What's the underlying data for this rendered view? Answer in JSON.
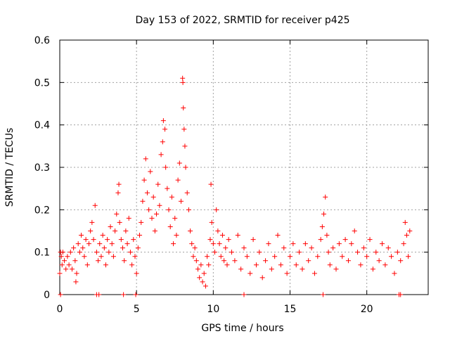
{
  "chart_data": {
    "type": "scatter",
    "title": "Day 153 of 2022, SRMTID for receiver p425",
    "xlabel": "GPS time / hours",
    "ylabel": "SRMTID / TECUs",
    "xlim": [
      0,
      24
    ],
    "ylim": [
      0,
      0.6
    ],
    "x_ticks": [
      0,
      5,
      10,
      15,
      20
    ],
    "x_tick_labels": [
      "0",
      "5",
      "10",
      "15",
      "20"
    ],
    "y_ticks": [
      0,
      0.1,
      0.2,
      0.3,
      0.4,
      0.5,
      0.6
    ],
    "y_tick_labels": [
      "0",
      "0.1",
      "0.2",
      "0.3",
      "0.4",
      "0.5",
      "0.6"
    ],
    "grid": true,
    "marker": "+",
    "marker_color": "#ff0000",
    "series": [
      {
        "name": "SRMTID",
        "points": [
          [
            0.0,
            0.05
          ],
          [
            0.05,
            0.1
          ],
          [
            0.1,
            0.09
          ],
          [
            0.15,
            0.07
          ],
          [
            0.2,
            0.1
          ],
          [
            0.3,
            0.08
          ],
          [
            0.4,
            0.06
          ],
          [
            0.5,
            0.09
          ],
          [
            0.6,
            0.07
          ],
          [
            0.7,
            0.1
          ],
          [
            0.8,
            0.06
          ],
          [
            0.9,
            0.11
          ],
          [
            1.0,
            0.08
          ],
          [
            1.05,
            0.03
          ],
          [
            1.1,
            0.05
          ],
          [
            1.2,
            0.12
          ],
          [
            1.3,
            0.1
          ],
          [
            1.4,
            0.14
          ],
          [
            1.5,
            0.11
          ],
          [
            1.6,
            0.09
          ],
          [
            1.7,
            0.13
          ],
          [
            1.8,
            0.07
          ],
          [
            1.9,
            0.12
          ],
          [
            2.0,
            0.15
          ],
          [
            2.1,
            0.17
          ],
          [
            2.2,
            0.13
          ],
          [
            2.3,
            0.21
          ],
          [
            2.4,
            0.1
          ],
          [
            2.5,
            0.08
          ],
          [
            2.6,
            0.12
          ],
          [
            2.7,
            0.09
          ],
          [
            2.8,
            0.14
          ],
          [
            2.9,
            0.11
          ],
          [
            3.0,
            0.07
          ],
          [
            3.1,
            0.13
          ],
          [
            3.2,
            0.1
          ],
          [
            3.3,
            0.16
          ],
          [
            3.4,
            0.12
          ],
          [
            3.5,
            0.09
          ],
          [
            3.6,
            0.15
          ],
          [
            3.7,
            0.19
          ],
          [
            3.8,
            0.24
          ],
          [
            3.85,
            0.26
          ],
          [
            3.9,
            0.17
          ],
          [
            4.0,
            0.13
          ],
          [
            4.1,
            0.11
          ],
          [
            4.2,
            0.08
          ],
          [
            4.3,
            0.15
          ],
          [
            4.4,
            0.12
          ],
          [
            4.5,
            0.18
          ],
          [
            4.6,
            0.1
          ],
          [
            4.7,
            0.07
          ],
          [
            4.8,
            0.13
          ],
          [
            4.9,
            0.09
          ],
          [
            5.0,
            0.05
          ],
          [
            5.1,
            0.11
          ],
          [
            5.2,
            0.14
          ],
          [
            5.3,
            0.17
          ],
          [
            5.4,
            0.22
          ],
          [
            5.5,
            0.27
          ],
          [
            5.6,
            0.32
          ],
          [
            5.7,
            0.24
          ],
          [
            5.8,
            0.2
          ],
          [
            5.9,
            0.29
          ],
          [
            6.0,
            0.18
          ],
          [
            6.1,
            0.23
          ],
          [
            6.2,
            0.15
          ],
          [
            6.3,
            0.19
          ],
          [
            6.4,
            0.26
          ],
          [
            6.5,
            0.21
          ],
          [
            6.6,
            0.33
          ],
          [
            6.7,
            0.36
          ],
          [
            6.75,
            0.41
          ],
          [
            6.85,
            0.39
          ],
          [
            6.9,
            0.3
          ],
          [
            7.0,
            0.25
          ],
          [
            7.1,
            0.2
          ],
          [
            7.2,
            0.16
          ],
          [
            7.3,
            0.23
          ],
          [
            7.4,
            0.12
          ],
          [
            7.5,
            0.18
          ],
          [
            7.6,
            0.14
          ],
          [
            7.7,
            0.27
          ],
          [
            7.8,
            0.31
          ],
          [
            7.9,
            0.22
          ],
          [
            8.0,
            0.51
          ],
          [
            8.02,
            0.5
          ],
          [
            8.05,
            0.44
          ],
          [
            8.1,
            0.39
          ],
          [
            8.15,
            0.35
          ],
          [
            8.2,
            0.3
          ],
          [
            8.3,
            0.24
          ],
          [
            8.4,
            0.2
          ],
          [
            8.5,
            0.15
          ],
          [
            8.6,
            0.12
          ],
          [
            8.7,
            0.09
          ],
          [
            8.8,
            0.11
          ],
          [
            8.9,
            0.08
          ],
          [
            9.0,
            0.06
          ],
          [
            9.1,
            0.04
          ],
          [
            9.2,
            0.07
          ],
          [
            9.3,
            0.03
          ],
          [
            9.4,
            0.05
          ],
          [
            9.5,
            0.02
          ],
          [
            9.6,
            0.09
          ],
          [
            9.7,
            0.07
          ],
          [
            9.8,
            0.13
          ],
          [
            9.85,
            0.26
          ],
          [
            9.9,
            0.17
          ],
          [
            10.0,
            0.12
          ],
          [
            10.1,
            0.1
          ],
          [
            10.2,
            0.2
          ],
          [
            10.3,
            0.15
          ],
          [
            10.4,
            0.12
          ],
          [
            10.5,
            0.09
          ],
          [
            10.6,
            0.14
          ],
          [
            10.7,
            0.08
          ],
          [
            10.8,
            0.11
          ],
          [
            10.9,
            0.07
          ],
          [
            11.0,
            0.13
          ],
          [
            11.2,
            0.1
          ],
          [
            11.4,
            0.08
          ],
          [
            11.6,
            0.14
          ],
          [
            11.8,
            0.06
          ],
          [
            12.0,
            0.11
          ],
          [
            12.2,
            0.09
          ],
          [
            12.4,
            0.05
          ],
          [
            12.6,
            0.13
          ],
          [
            12.8,
            0.07
          ],
          [
            13.0,
            0.1
          ],
          [
            13.2,
            0.04
          ],
          [
            13.4,
            0.08
          ],
          [
            13.6,
            0.12
          ],
          [
            13.8,
            0.06
          ],
          [
            14.0,
            0.09
          ],
          [
            14.2,
            0.14
          ],
          [
            14.4,
            0.07
          ],
          [
            14.6,
            0.11
          ],
          [
            14.8,
            0.05
          ],
          [
            15.0,
            0.09
          ],
          [
            15.2,
            0.12
          ],
          [
            15.4,
            0.07
          ],
          [
            15.6,
            0.1
          ],
          [
            15.8,
            0.06
          ],
          [
            16.0,
            0.12
          ],
          [
            16.2,
            0.08
          ],
          [
            16.4,
            0.11
          ],
          [
            16.6,
            0.05
          ],
          [
            16.8,
            0.09
          ],
          [
            17.0,
            0.13
          ],
          [
            17.1,
            0.16
          ],
          [
            17.2,
            0.19
          ],
          [
            17.3,
            0.23
          ],
          [
            17.4,
            0.14
          ],
          [
            17.5,
            0.1
          ],
          [
            17.6,
            0.07
          ],
          [
            17.8,
            0.11
          ],
          [
            18.0,
            0.06
          ],
          [
            18.2,
            0.12
          ],
          [
            18.4,
            0.09
          ],
          [
            18.6,
            0.13
          ],
          [
            18.8,
            0.08
          ],
          [
            19.0,
            0.12
          ],
          [
            19.2,
            0.15
          ],
          [
            19.4,
            0.1
          ],
          [
            19.6,
            0.07
          ],
          [
            19.8,
            0.11
          ],
          [
            20.0,
            0.09
          ],
          [
            20.2,
            0.13
          ],
          [
            20.4,
            0.06
          ],
          [
            20.6,
            0.1
          ],
          [
            20.8,
            0.08
          ],
          [
            21.0,
            0.12
          ],
          [
            21.2,
            0.07
          ],
          [
            21.4,
            0.11
          ],
          [
            21.6,
            0.09
          ],
          [
            21.8,
            0.05
          ],
          [
            22.0,
            0.1
          ],
          [
            22.2,
            0.08
          ],
          [
            22.4,
            0.12
          ],
          [
            22.5,
            0.17
          ],
          [
            22.6,
            0.14
          ],
          [
            22.7,
            0.09
          ],
          [
            22.8,
            0.15
          ]
        ]
      }
    ],
    "baseline_markers_x": [
      0.05,
      2.4,
      2.55,
      4.15,
      4.95,
      12.0,
      17.15,
      22.1,
      22.2
    ]
  }
}
